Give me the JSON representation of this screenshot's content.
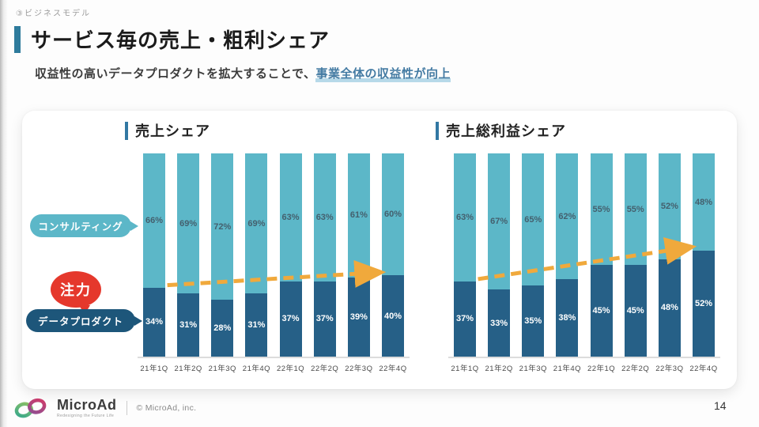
{
  "page": {
    "tag": "③ビジネスモデル",
    "title": "サービス毎の売上・粗利シェア",
    "subtitle_prefix": "収益性の高いデータプロダクトを拡大することで、",
    "subtitle_highlight": "事業全体の収益性が向上",
    "page_number": "14"
  },
  "legend": {
    "consulting": "コンサルティング",
    "focus": "注力",
    "data_product": "データプロダクト"
  },
  "footer": {
    "brand": "MicroAd",
    "tagline": "Redesigning the Future Life",
    "copyright": "© MicroAd, inc.",
    "logo_icon": "infinity-ribbon-icon"
  },
  "colors": {
    "series_light": "#5cb7c8",
    "series_dark": "#266087",
    "legend_dark_pill": "#1d567a",
    "focus_red": "#e5382c",
    "arrow": "#f0a93c",
    "header_accent": "#2e7b9c",
    "chart_accent": "#3278a3",
    "highlight_text": "#447ba3",
    "highlight_underline": "#b7d9e9"
  },
  "chart_data": [
    {
      "type": "bar",
      "stacked": true,
      "unit": "%",
      "ylim": [
        0,
        100
      ],
      "value_labels": true,
      "trend_arrow": "up",
      "title": "売上シェア",
      "categories": [
        "21年1Q",
        "21年2Q",
        "21年3Q",
        "21年4Q",
        "22年1Q",
        "22年2Q",
        "22年3Q",
        "22年4Q"
      ],
      "series": [
        {
          "name": "コンサルティング",
          "position": "top",
          "values": [
            66,
            69,
            72,
            69,
            63,
            63,
            61,
            60
          ]
        },
        {
          "name": "データプロダクト",
          "position": "bottom",
          "values": [
            34,
            31,
            28,
            31,
            37,
            37,
            39,
            40
          ]
        }
      ]
    },
    {
      "type": "bar",
      "stacked": true,
      "unit": "%",
      "ylim": [
        0,
        100
      ],
      "value_labels": true,
      "trend_arrow": "up",
      "title": "売上総利益シェア",
      "categories": [
        "21年1Q",
        "21年2Q",
        "21年3Q",
        "21年4Q",
        "22年1Q",
        "22年2Q",
        "22年3Q",
        "22年4Q"
      ],
      "series": [
        {
          "name": "コンサルティング",
          "position": "top",
          "values": [
            63,
            67,
            65,
            62,
            55,
            55,
            52,
            48
          ]
        },
        {
          "name": "データプロダクト",
          "position": "bottom",
          "values": [
            37,
            33,
            35,
            38,
            45,
            45,
            48,
            52
          ]
        }
      ]
    }
  ]
}
